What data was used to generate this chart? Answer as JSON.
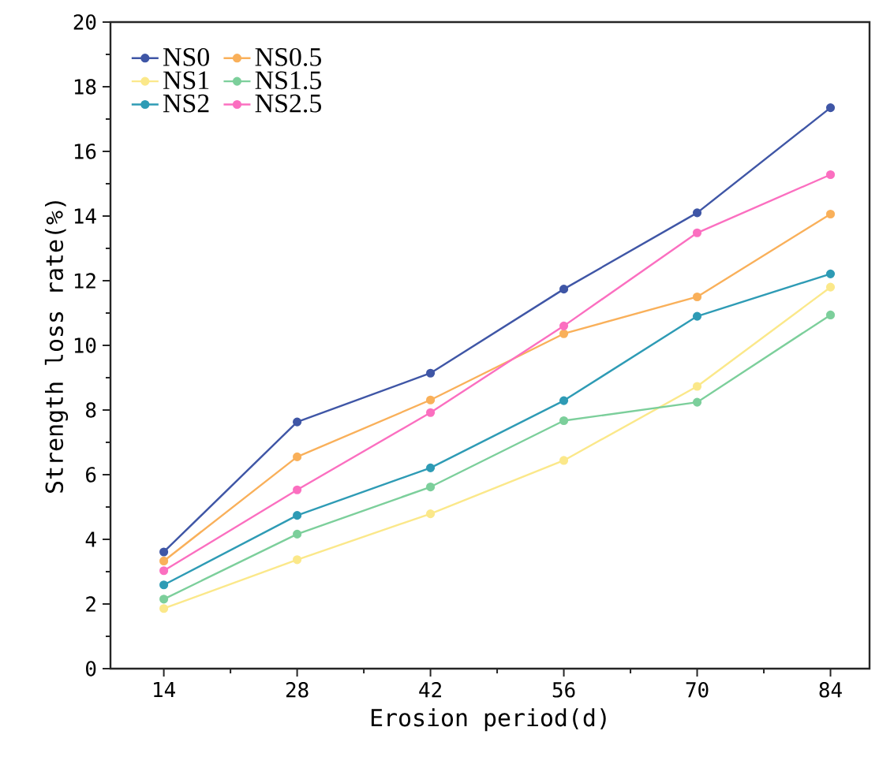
{
  "chart_data": {
    "type": "line",
    "xlabel": "Erosion period(d)",
    "ylabel": "Strength loss rate(%)",
    "x": [
      14,
      28,
      42,
      56,
      70,
      84
    ],
    "xlim": [
      8.4,
      88.1
    ],
    "xticks": [
      14,
      28,
      42,
      56,
      70,
      84
    ],
    "ylim": [
      0,
      20
    ],
    "yticks": [
      0,
      2,
      4,
      6,
      8,
      10,
      12,
      14,
      16,
      18,
      20
    ],
    "marker": "circle",
    "legend": "top left",
    "grid": false,
    "series": [
      {
        "name": "NS0",
        "color": "#3f56a6",
        "values": [
          3.61,
          7.63,
          9.14,
          11.74,
          14.1,
          17.35
        ]
      },
      {
        "name": "NS0.5",
        "color": "#f9b05a",
        "values": [
          3.33,
          6.55,
          8.31,
          10.36,
          11.5,
          14.06
        ]
      },
      {
        "name": "NS1",
        "color": "#fbe88a",
        "values": [
          1.86,
          3.37,
          4.79,
          6.44,
          8.73,
          11.8
        ]
      },
      {
        "name": "NS1.5",
        "color": "#7ccf9b",
        "values": [
          2.15,
          4.16,
          5.62,
          7.67,
          8.24,
          10.94
        ]
      },
      {
        "name": "NS2",
        "color": "#2e9bb5",
        "values": [
          2.59,
          4.74,
          6.21,
          8.29,
          10.9,
          12.21
        ]
      },
      {
        "name": "NS2.5",
        "color": "#fb6fc0",
        "values": [
          3.03,
          5.53,
          7.92,
          10.6,
          13.48,
          15.28
        ]
      }
    ]
  }
}
